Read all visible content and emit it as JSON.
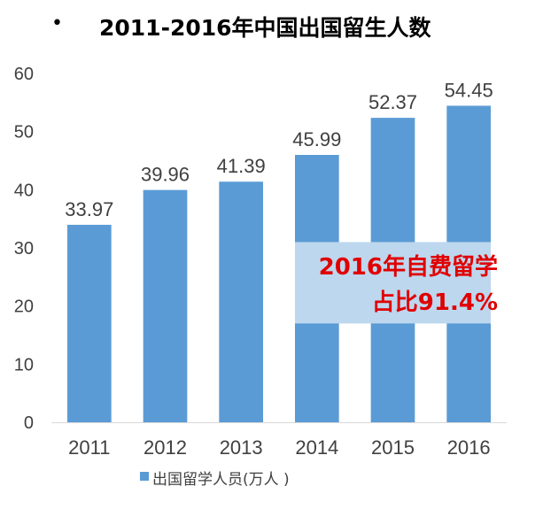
{
  "bullet": "•",
  "title": "2011-2016年中国出国留生人数",
  "colors": {
    "bar": "#5b9bd5",
    "highlight_band": "#bdd7ee",
    "annotation": "#e00000",
    "text": "#404040"
  },
  "annotation": {
    "line1": "2016年自费留学",
    "line2": "占比91.4%",
    "band_range": [
      17,
      31
    ]
  },
  "legend": {
    "label": "出国留学人员(万人 )"
  },
  "chart_data": {
    "type": "bar",
    "categories": [
      "2011",
      "2012",
      "2013",
      "2014",
      "2015",
      "2016"
    ],
    "series": [
      {
        "name": "出国留学人员(万人 )",
        "values": [
          33.97,
          39.96,
          41.39,
          45.99,
          52.37,
          54.45
        ]
      }
    ],
    "data_labels": [
      "33.97",
      "39.96",
      "41.39",
      "45.99",
      "52.37",
      "54.45"
    ],
    "yticks": [
      0,
      10,
      20,
      30,
      40,
      50,
      60
    ],
    "ylim": [
      0,
      60
    ],
    "grid": false,
    "legend_position": "bottom-left"
  }
}
